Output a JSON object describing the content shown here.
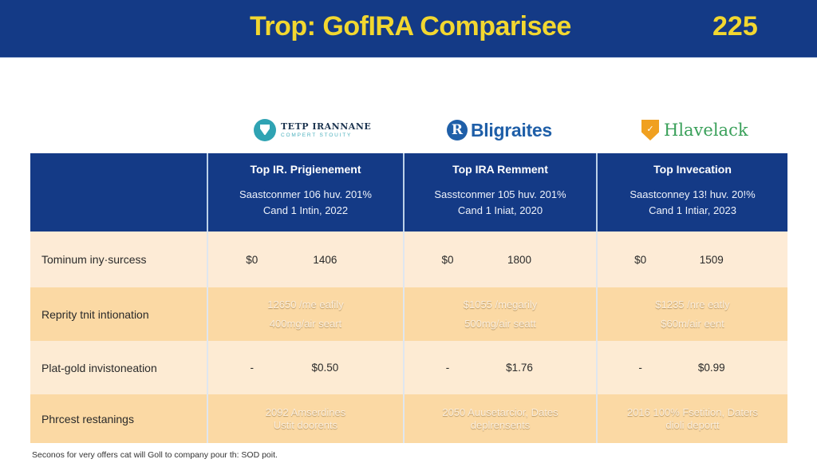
{
  "header": {
    "title": "Trop: GofIRA Comparisee",
    "year": "225",
    "colors": {
      "background": "#143a86",
      "text": "#f2d730"
    }
  },
  "logos": [
    {
      "name": "TETP IRANNANE",
      "subtitle": "COMPERT STOUITY",
      "icon": "teal-shield-circle-icon"
    },
    {
      "name": "Bligraites",
      "mark": "R",
      "icon": "blue-r-circle-icon"
    },
    {
      "name": "Hlavelack",
      "icon": "orange-shield-icon"
    }
  ],
  "table": {
    "columns": [
      {
        "title": "Top IR. Prigienement",
        "line1": "Saastconmer 106 huv. 201%",
        "line2": "Cand 1 Intin, 2022"
      },
      {
        "title": "Top IRA Remment",
        "line1": "Sasstconmer 105 huv. 201%",
        "line2": "Cand 1 Iniat, 2020"
      },
      {
        "title": "Top Invecation",
        "line1": "Saastconney 13! huv. 20!%",
        "line2": "Cand 1 Intiar, 2023"
      }
    ],
    "rows": [
      {
        "label": "Tominum iny·surcess",
        "cells": [
          {
            "a": "$0",
            "b": "1406"
          },
          {
            "a": "$0",
            "b": "1800"
          },
          {
            "a": "$0",
            "b": "1509"
          }
        ]
      },
      {
        "label": "Reprity tnit intionation",
        "cells": [
          {
            "line1": "12650 /me eafily",
            "line2": "400mg/air seart"
          },
          {
            "line1": "$1055 /megarily",
            "line2": "500mg/air seatt"
          },
          {
            "line1": "$1235 /nre eatly",
            "line2": "$60m/air eent"
          }
        ]
      },
      {
        "label": "Plat-gold invistoneation",
        "cells": [
          {
            "a": "-",
            "b": "$0.50"
          },
          {
            "a": "-",
            "b": "$1.76"
          },
          {
            "a": "-",
            "b": "$0.99"
          }
        ]
      },
      {
        "label": "Phrcest restanings",
        "cells": [
          {
            "line1": "2092 Amserdines",
            "line2": "Ustit doorents"
          },
          {
            "line1": "2050 Auusetarcior, Dates",
            "line2": "deplrensents"
          },
          {
            "line1": "2016 100% Fsetition, Daters",
            "line2": "dioli deportt"
          }
        ]
      }
    ],
    "colors": {
      "header": "#143a86",
      "row_light": "#fdebd3",
      "row_dark": "#fbd9a4"
    }
  },
  "footer": {
    "note": "Seconos for very offers cat will Goll to company pour th: SOD poit."
  }
}
